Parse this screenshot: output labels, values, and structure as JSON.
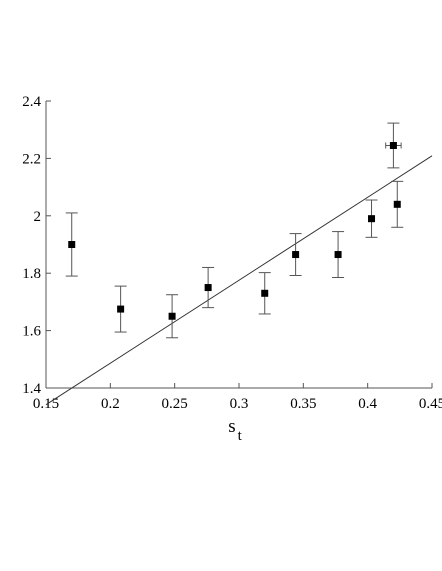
{
  "chart_data": {
    "type": "scatter",
    "title": "",
    "xlabel": "s",
    "xlabel_subscript": "t",
    "ylabel": "",
    "xlim": [
      0.15,
      0.45
    ],
    "ylim": [
      1.4,
      2.4
    ],
    "grid": false,
    "x_ticks": [
      "0.15",
      "0.2",
      "0.25",
      "0.3",
      "0.35",
      "0.4",
      "0.45"
    ],
    "y_ticks": [
      "1.4",
      "1.6",
      "1.8",
      "2",
      "2.2",
      "2.4"
    ],
    "series": [
      {
        "marker": "square",
        "color": "#000000",
        "points": [
          {
            "x": 0.17,
            "y": 1.9,
            "y_err": 0.11
          },
          {
            "x": 0.208,
            "y": 1.675,
            "y_err": 0.08
          },
          {
            "x": 0.248,
            "y": 1.65,
            "y_err": 0.075
          },
          {
            "x": 0.276,
            "y": 1.75,
            "y_err": 0.07
          },
          {
            "x": 0.32,
            "y": 1.73,
            "y_err": 0.072
          },
          {
            "x": 0.344,
            "y": 1.865,
            "y_err": 0.073
          },
          {
            "x": 0.377,
            "y": 1.865,
            "y_err": 0.08
          },
          {
            "x": 0.403,
            "y": 1.99,
            "y_err": 0.065
          },
          {
            "x": 0.42,
            "y": 2.245,
            "y_err": 0.078,
            "x_err": 0.006
          },
          {
            "x": 0.423,
            "y": 2.04,
            "y_err": 0.08
          }
        ]
      }
    ],
    "fit_line": {
      "x": [
        0.15,
        0.45
      ],
      "y": [
        1.342,
        2.209
      ]
    }
  }
}
